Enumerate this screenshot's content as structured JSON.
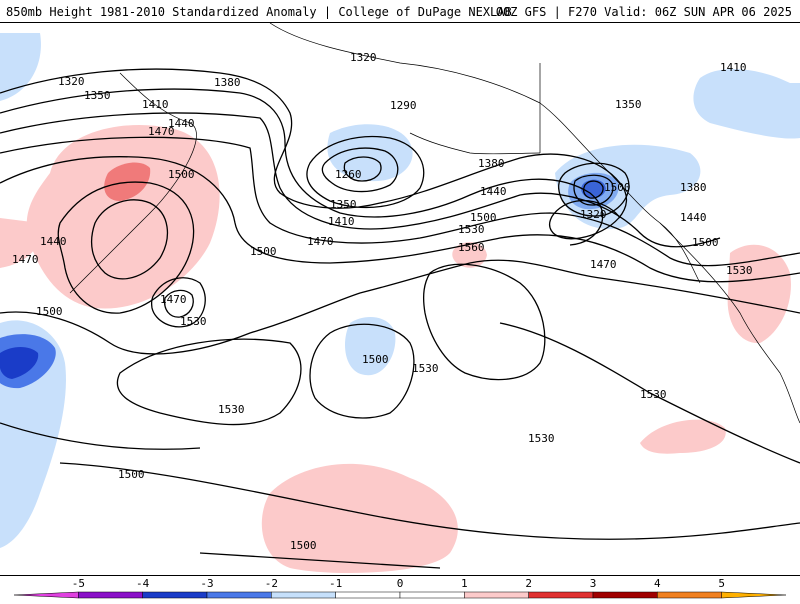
{
  "header": {
    "title_left": "850mb Height 1981-2010 Standardized Anomaly | College of DuPage NEXLAB",
    "title_right": "00Z GFS | F270 Valid: 06Z SUN APR 06 2025"
  },
  "contour_labels": [
    "1320",
    "1350",
    "1380",
    "1410",
    "1440",
    "1470",
    "1500",
    "1530",
    "1560",
    "1260",
    "1290",
    "1320",
    "1350",
    "1380",
    "1410",
    "1440",
    "1470",
    "1500",
    "1530",
    "1500",
    "1470",
    "1500",
    "1530",
    "1500",
    "1530",
    "1530",
    "1530",
    "1500",
    "1500",
    "1410",
    "1350",
    "1380",
    "1320",
    "1440",
    "1500",
    "1530",
    "1440",
    "1470",
    "1500",
    "1470"
  ],
  "colorbar": {
    "ticks": [
      "-5",
      "-4",
      "-3",
      "-2",
      "-1",
      "0",
      "1",
      "2",
      "3",
      "4",
      "5"
    ],
    "colors": [
      "#e040e0",
      "#8a10c8",
      "#1a3cc8",
      "#4a78e8",
      "#c6e0fb",
      "#ffffff",
      "#ffffff",
      "#fccaca",
      "#e03030",
      "#a00000",
      "#f08020",
      "#ffb000"
    ]
  },
  "anomaly_colors": {
    "pos1": "#fccaca",
    "pos2": "#f07a7a",
    "neg1": "#c8e0fb",
    "neg2": "#80aaf0",
    "neg3": "#3a64d8"
  }
}
